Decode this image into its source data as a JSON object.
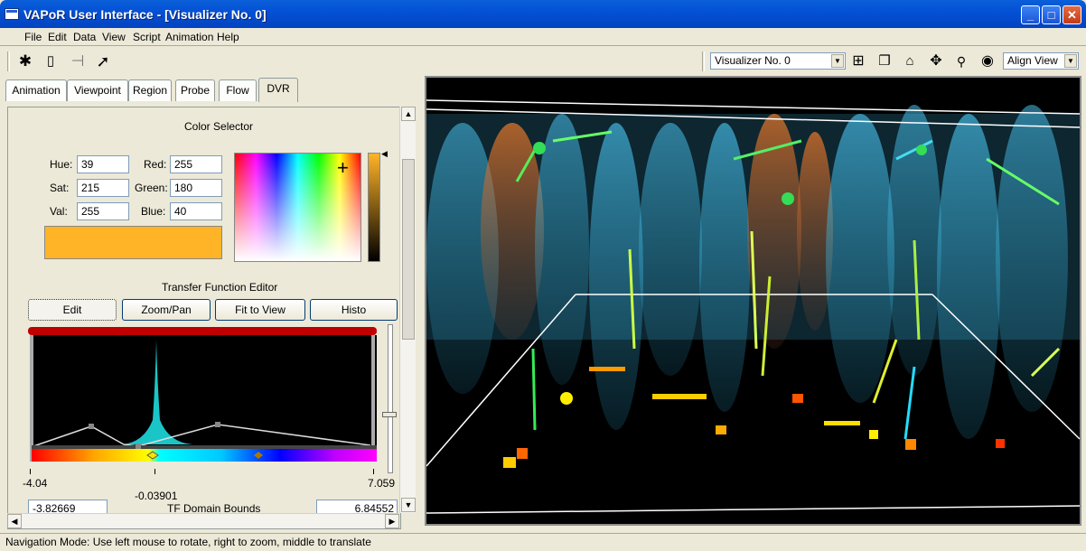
{
  "window": {
    "title": "VAPoR User Interface - [Visualizer No. 0]"
  },
  "menu": {
    "items": [
      "File",
      "Edit",
      "Data",
      "View",
      "Script",
      "Animation",
      "Help"
    ]
  },
  "toolbar": {
    "visualizer_select": "Visualizer No. 0",
    "align_select": "Align View",
    "left_icons": [
      "navigation-icon",
      "region-box-icon",
      "rake-icon",
      "probe-arrow-icon"
    ],
    "right_icons": [
      "tile-windows-icon",
      "cascade-windows-icon",
      "home-icon",
      "center-view-icon",
      "zoom-icon",
      "view-all-icon"
    ]
  },
  "tabs": [
    "Animation",
    "Viewpoint",
    "Region",
    "Probe",
    "Flow",
    "DVR"
  ],
  "active_tab": "DVR",
  "color_selector": {
    "title": "Color Selector",
    "hue_label": "Hue:",
    "hue": "39",
    "sat_label": "Sat:",
    "sat": "215",
    "val_label": "Val:",
    "val": "255",
    "red_label": "Red:",
    "red": "255",
    "green_label": "Green:",
    "green": "180",
    "blue_label": "Blue:",
    "blue": "40",
    "swatch_color": "#ffb428"
  },
  "tf_editor": {
    "title": "Transfer Function Editor",
    "buttons": [
      "Edit",
      "Zoom/Pan",
      "Fit to View",
      "Histo"
    ],
    "min_label": "-4.04",
    "max_label": "7.059",
    "mid_label": "-0.03901",
    "domain_min": "-3.82669",
    "domain_max": "6.84552",
    "domain_label": "TF Domain Bounds"
  },
  "status": {
    "text": "Navigation Mode:  Use left mouse to rotate, right to zoom, middle to translate"
  }
}
